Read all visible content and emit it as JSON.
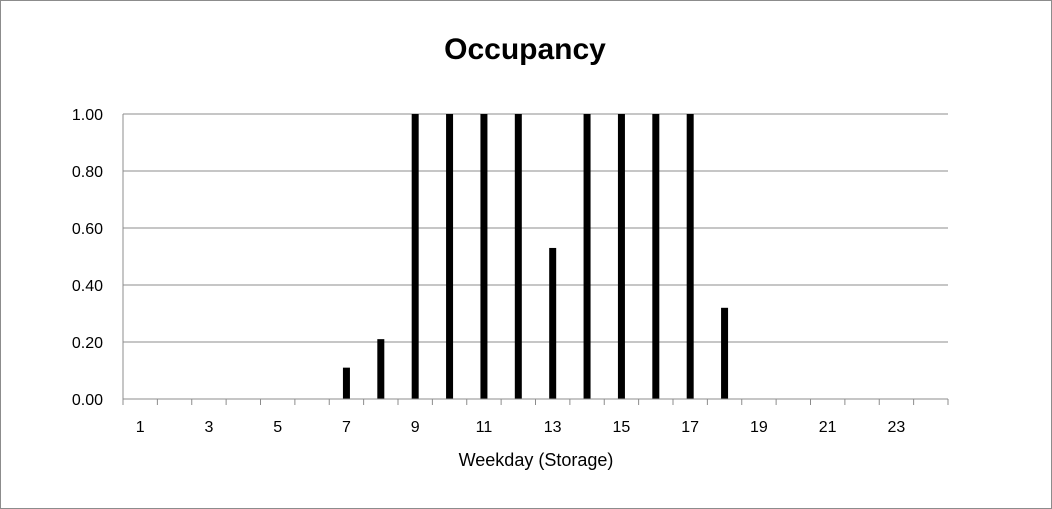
{
  "chart_data": {
    "type": "bar",
    "title": "Occupancy",
    "xlabel": "Weekday (Storage)",
    "ylabel": "",
    "categories": [
      "1",
      "2",
      "3",
      "4",
      "5",
      "6",
      "7",
      "8",
      "9",
      "10",
      "11",
      "12",
      "13",
      "14",
      "15",
      "16",
      "17",
      "18",
      "19",
      "20",
      "21",
      "22",
      "23",
      "24"
    ],
    "values": [
      0,
      0,
      0,
      0,
      0,
      0,
      0.11,
      0.21,
      1.0,
      1.0,
      1.0,
      1.0,
      0.53,
      1.0,
      1.0,
      1.0,
      1.0,
      0.32,
      0,
      0,
      0,
      0,
      0,
      0
    ],
    "ylim": [
      0,
      1
    ],
    "yticks": [
      "0.00",
      "0.20",
      "0.40",
      "0.60",
      "0.80",
      "1.00"
    ],
    "xtick_labels": [
      "1",
      "3",
      "5",
      "7",
      "9",
      "11",
      "13",
      "15",
      "17",
      "19",
      "21",
      "23"
    ],
    "grid": true,
    "legend": "none",
    "bar_color": "#000000",
    "grid_color": "#8c8c8c"
  }
}
